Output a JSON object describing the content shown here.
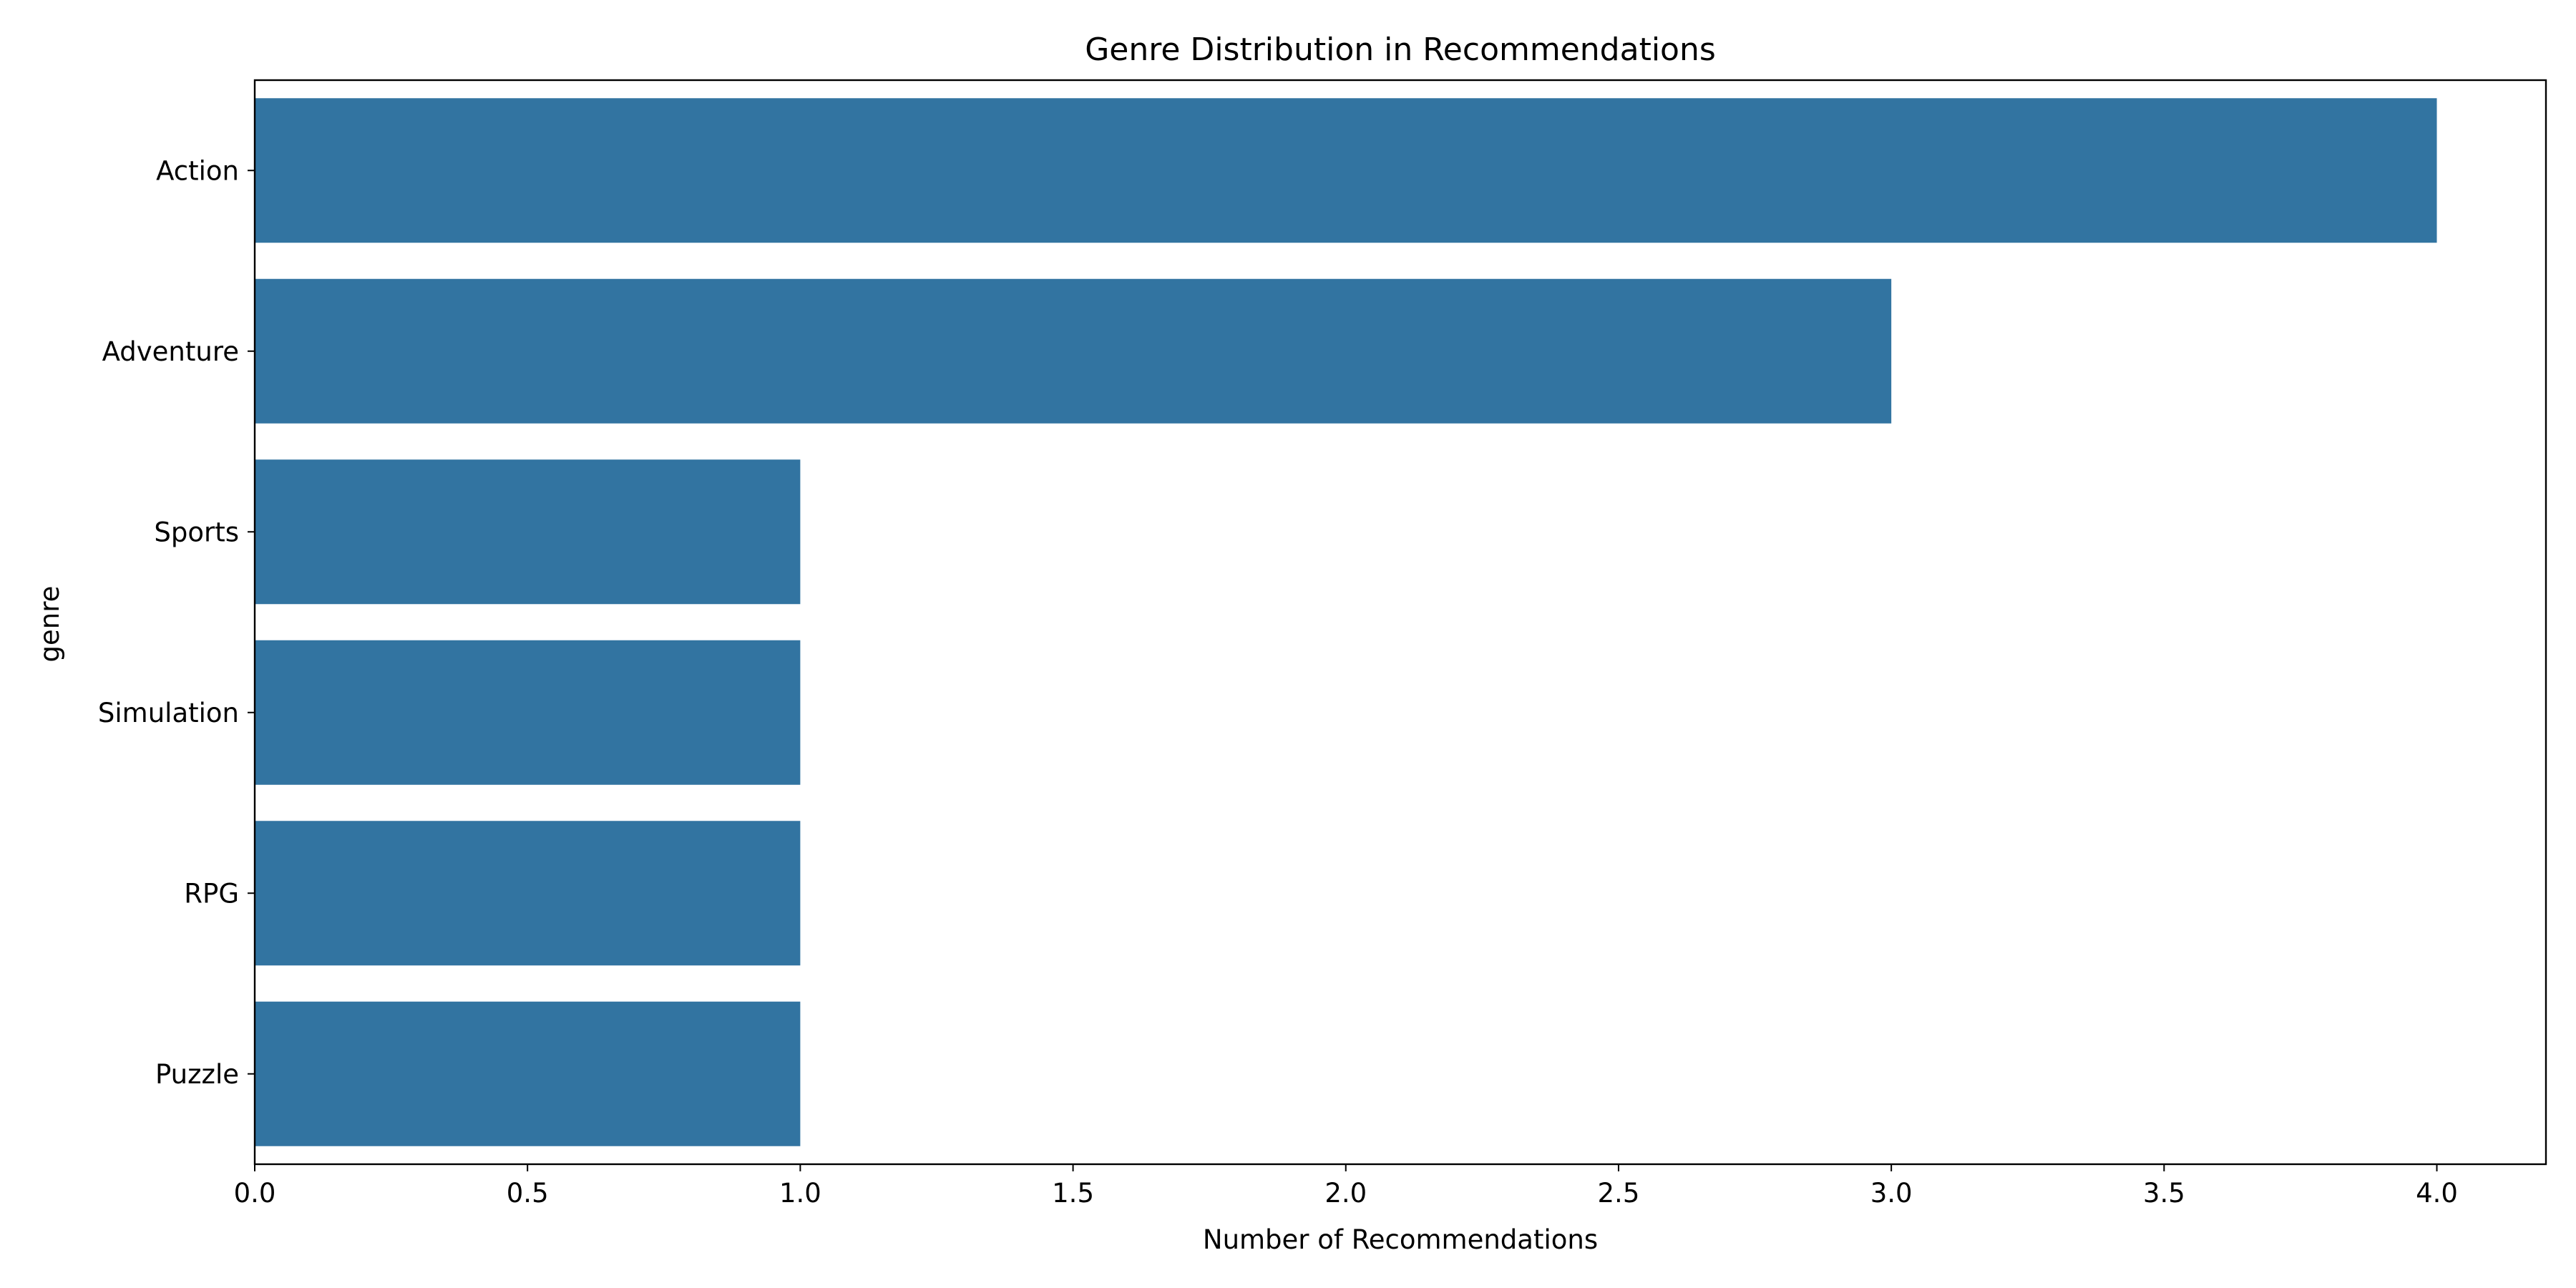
{
  "chart_data": {
    "type": "bar",
    "orientation": "horizontal",
    "title": "Genre Distribution in Recommendations",
    "xlabel": "Number of Recommendations",
    "ylabel": "genre",
    "categories": [
      "Action",
      "Adventure",
      "Sports",
      "Simulation",
      "RPG",
      "Puzzle"
    ],
    "values": [
      4,
      3,
      1,
      1,
      1,
      1
    ],
    "xlim": [
      0,
      4.2
    ],
    "xticks": [
      "0.0",
      "0.5",
      "1.0",
      "1.5",
      "2.0",
      "2.5",
      "3.0",
      "3.5",
      "4.0"
    ],
    "grid": false,
    "legend": "none",
    "bar_color": "#3274a1"
  }
}
